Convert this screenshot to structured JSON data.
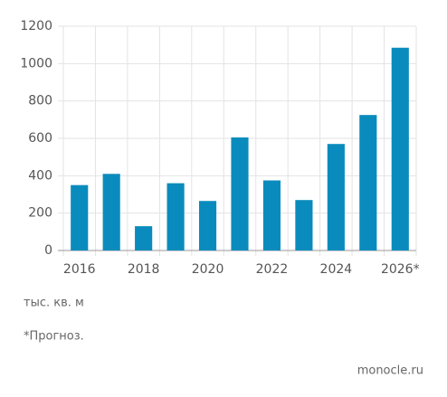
{
  "chart_data": {
    "type": "bar",
    "categories": [
      "2016",
      null,
      "2018",
      null,
      "2020",
      null,
      "2022",
      null,
      "2024",
      null,
      "2026*"
    ],
    "values": [
      350,
      410,
      130,
      360,
      265,
      605,
      375,
      270,
      570,
      725,
      1085
    ],
    "color": "#0a8bbd",
    "ylim": [
      0,
      1200
    ],
    "yticks": [
      0,
      200,
      400,
      600,
      800,
      1000,
      1200
    ],
    "grid": true,
    "unit_label": "тыс. кв. м",
    "footnote": "*Прогноз.",
    "source": "monocle.ru"
  }
}
